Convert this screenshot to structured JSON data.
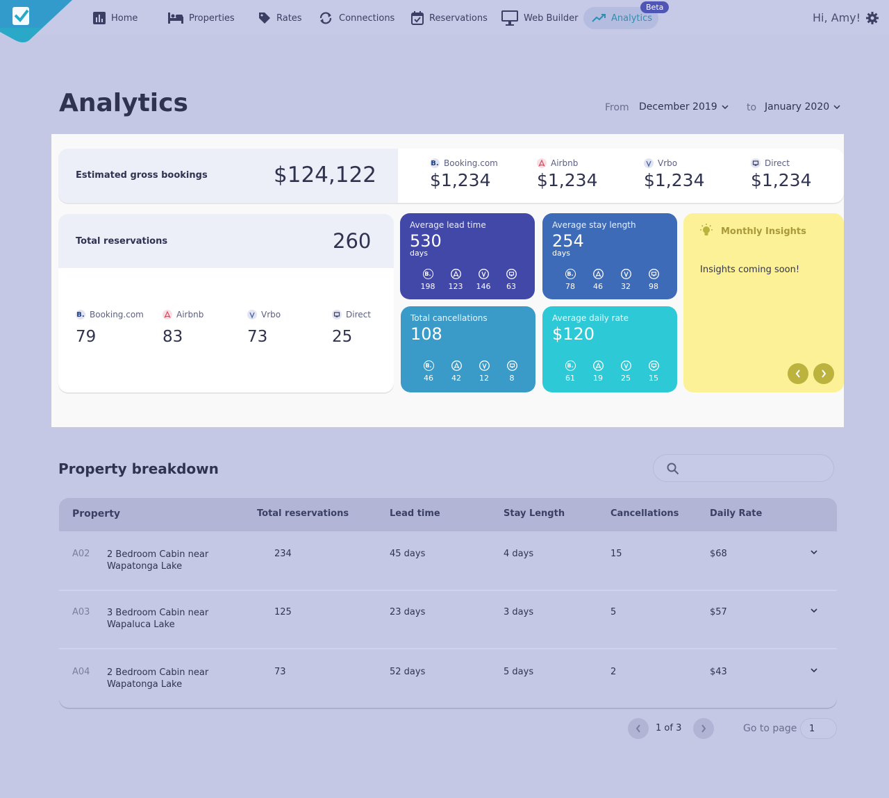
{
  "nav": {
    "items": [
      {
        "label": "Home",
        "icon": "bar-chart-icon"
      },
      {
        "label": "Properties",
        "icon": "bed-icon"
      },
      {
        "label": "Rates",
        "icon": "tag-icon"
      },
      {
        "label": "Connections",
        "icon": "sync-icon"
      },
      {
        "label": "Reservations",
        "icon": "calendar-check-icon"
      },
      {
        "label": "Web Builder",
        "icon": "monitor-icon"
      },
      {
        "label": "Analytics",
        "icon": "trend-icon"
      }
    ],
    "badge": "Beta",
    "greeting": "Hi, Amy!"
  },
  "header": {
    "title": "Analytics",
    "from_label": "From",
    "from_value": "December 2019",
    "to_label": "to",
    "to_value": "January 2020"
  },
  "gross": {
    "label": "Estimated gross bookings",
    "total": "$124,122",
    "channels": [
      {
        "name": "Booking.com",
        "value": "$1,234"
      },
      {
        "name": "Airbnb",
        "value": "$1,234"
      },
      {
        "name": "Vrbo",
        "value": "$1,234"
      },
      {
        "name": "Direct",
        "value": "$1,234"
      }
    ]
  },
  "reservations": {
    "label": "Total reservations",
    "total": "260",
    "channels": [
      {
        "name": "Booking.com",
        "value": "79"
      },
      {
        "name": "Airbnb",
        "value": "83"
      },
      {
        "name": "Vrbo",
        "value": "73"
      },
      {
        "name": "Direct",
        "value": "25"
      }
    ]
  },
  "stats": {
    "lead": {
      "title": "Average lead time",
      "value": "530",
      "unit": "days",
      "channels": [
        "198",
        "123",
        "146",
        "63"
      ]
    },
    "stay": {
      "title": "Average stay length",
      "value": "254",
      "unit": "days",
      "channels": [
        "78",
        "46",
        "32",
        "98"
      ]
    },
    "cancellations": {
      "title": "Total cancellations",
      "value": "108",
      "channels": [
        "46",
        "42",
        "12",
        "8"
      ]
    },
    "rate": {
      "title": "Average daily rate",
      "value": "$120",
      "channels": [
        "61",
        "19",
        "25",
        "15"
      ]
    }
  },
  "insights": {
    "title": "Monthly Insights",
    "text": "Insights coming soon!"
  },
  "breakdown": {
    "title": "Property breakdown",
    "search_placeholder": "",
    "columns": [
      "Property",
      "Total reservations",
      "Lead time",
      "Stay Length",
      "Cancellations",
      "Daily Rate"
    ],
    "rows": [
      {
        "code": "A02",
        "name": "2 Bedroom Cabin near Wapatonga Lake",
        "reservations": "234",
        "lead": "45 days",
        "stay": "4 days",
        "cancellations": "15",
        "rate": "$68"
      },
      {
        "code": "A03",
        "name": "3 Bedroom Cabin near Wapaluca Lake",
        "reservations": "125",
        "lead": "23 days",
        "stay": "3 days",
        "cancellations": "5",
        "rate": "$57"
      },
      {
        "code": "A04",
        "name": "2 Bedroom Cabin near Wapatonga Lake",
        "reservations": "73",
        "lead": "52 days",
        "stay": "5 days",
        "cancellations": "2",
        "rate": "$43"
      }
    ]
  },
  "pagination": {
    "info": "1 of 3",
    "goto_label": "Go to page",
    "goto_value": "1"
  },
  "colors": {
    "background": "#c5c8e4",
    "lead_card": "#4248a8",
    "stay_card": "#3e6bb8",
    "cancel_card": "#3a9bc8",
    "rate_card": "#2ec9d6",
    "insights_card": "#fdf197"
  }
}
